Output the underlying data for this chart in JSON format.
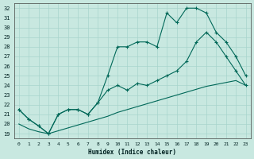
{
  "xlabel": "Humidex (Indice chaleur)",
  "bg_color": "#c8e8e0",
  "line_color": "#006858",
  "grid_color": "#a8d4cc",
  "xlim": [
    -0.5,
    23.5
  ],
  "ylim": [
    18.5,
    32.5
  ],
  "xticks": [
    0,
    1,
    2,
    3,
    4,
    5,
    6,
    7,
    8,
    9,
    10,
    11,
    12,
    13,
    14,
    15,
    16,
    17,
    18,
    19,
    20,
    21,
    22,
    23
  ],
  "yticks": [
    19,
    20,
    21,
    22,
    23,
    24,
    25,
    26,
    27,
    28,
    29,
    30,
    31,
    32
  ],
  "line1_x": [
    0,
    1,
    2,
    3,
    4,
    5,
    6,
    7,
    8,
    9,
    10,
    11,
    12,
    13,
    14,
    15,
    16,
    17,
    18,
    19,
    20,
    21,
    22,
    23
  ],
  "line1_y": [
    20.0,
    19.5,
    19.2,
    19.0,
    19.3,
    19.6,
    19.9,
    20.2,
    20.5,
    20.8,
    21.2,
    21.5,
    21.8,
    22.1,
    22.4,
    22.7,
    23.0,
    23.3,
    23.6,
    23.9,
    24.1,
    24.3,
    24.5,
    24.0
  ],
  "line2_x": [
    0,
    1,
    2,
    3,
    4,
    5,
    6,
    7,
    8,
    9,
    10,
    11,
    12,
    13,
    14,
    15,
    16,
    17,
    18,
    19,
    20,
    21,
    22,
    23
  ],
  "line2_y": [
    21.5,
    20.5,
    19.8,
    19.0,
    21.0,
    21.5,
    21.5,
    21.0,
    22.2,
    25.0,
    28.0,
    28.0,
    28.5,
    28.5,
    28.0,
    31.5,
    30.5,
    32.0,
    32.0,
    31.5,
    29.5,
    28.5,
    27.0,
    25.0
  ],
  "line3_x": [
    0,
    1,
    2,
    3,
    4,
    5,
    6,
    7,
    8,
    9,
    10,
    11,
    12,
    13,
    14,
    15,
    16,
    17,
    18,
    19,
    20,
    21,
    22,
    23
  ],
  "line3_y": [
    21.5,
    20.5,
    19.8,
    19.0,
    21.0,
    21.5,
    21.5,
    21.0,
    22.2,
    23.5,
    24.0,
    23.5,
    24.2,
    24.0,
    24.5,
    25.0,
    25.5,
    26.5,
    28.5,
    29.5,
    28.5,
    27.0,
    25.5,
    24.0
  ]
}
